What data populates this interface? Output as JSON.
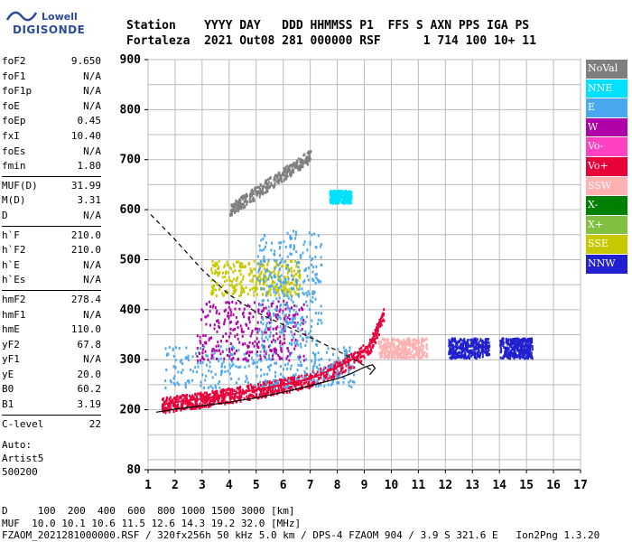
{
  "logo": {
    "line1": "Lowell",
    "line2": "DIGISONDE"
  },
  "header": {
    "line1": "Station    YYYY DAY   DDD HHMMSS P1  FFS S AXN PPS IGA PS",
    "line2": "Fortaleza  2021 Out08 281 000000 RSF      1 714 100 10+ 11"
  },
  "params": [
    [
      {
        "k": "foF2",
        "v": "9.650"
      },
      {
        "k": "foF1",
        "v": "N/A"
      },
      {
        "k": "foF1p",
        "v": "N/A"
      },
      {
        "k": "foE",
        "v": "N/A"
      },
      {
        "k": "foEp",
        "v": "0.45"
      },
      {
        "k": "fxI",
        "v": "10.40"
      },
      {
        "k": "foEs",
        "v": "N/A"
      },
      {
        "k": "fmin",
        "v": "1.80"
      }
    ],
    [
      {
        "k": "MUF(D)",
        "v": "31.99"
      },
      {
        "k": "M(D)",
        "v": "3.31"
      },
      {
        "k": "D",
        "v": "N/A"
      }
    ],
    [
      {
        "k": "h`F",
        "v": "210.0"
      },
      {
        "k": "h`F2",
        "v": "210.0"
      },
      {
        "k": "h`E",
        "v": "N/A"
      },
      {
        "k": "h`Es",
        "v": "N/A"
      }
    ],
    [
      {
        "k": "hmF2",
        "v": "278.4"
      },
      {
        "k": "hmF1",
        "v": "N/A"
      },
      {
        "k": "hmE",
        "v": "110.0"
      },
      {
        "k": "yF2",
        "v": "67.8"
      },
      {
        "k": "yF1",
        "v": "N/A"
      },
      {
        "k": "yE",
        "v": "20.0"
      },
      {
        "k": "B0",
        "v": "60.2"
      },
      {
        "k": "B1",
        "v": "3.19"
      }
    ],
    [
      {
        "k": "C-level",
        "v": "22"
      }
    ]
  ],
  "auto": {
    "line1": "Auto:",
    "line2": "Artist5",
    "line3": "500200"
  },
  "legend": [
    {
      "label": "NoVal",
      "color": "#7f7f7f",
      "text": "#ffffff"
    },
    {
      "label": "NNE",
      "color": "#00e0ff",
      "text": "#ffffff"
    },
    {
      "label": "E",
      "color": "#4aa8f0",
      "text": "#ffffff"
    },
    {
      "label": "W",
      "color": "#b000a8",
      "text": "#ffffff"
    },
    {
      "label": "Vo-",
      "color": "#ff40c0",
      "text": "#ffffff"
    },
    {
      "label": "Vo+",
      "color": "#e8003a",
      "text": "#ffffff"
    },
    {
      "label": "SSW",
      "color": "#ffb0b0",
      "text": "#ffffff"
    },
    {
      "label": "X-",
      "color": "#008000",
      "text": "#ffffff"
    },
    {
      "label": "X+",
      "color": "#80c040",
      "text": "#ffffff"
    },
    {
      "label": "SSE",
      "color": "#c8c800",
      "text": "#ffffff"
    },
    {
      "label": "NNW",
      "color": "#2020d0",
      "text": "#ffffff"
    }
  ],
  "footer": {
    "line1": "D     100  200  400  600  800 1000 1500 3000 [km]",
    "line2": "MUF  10.0 10.1 10.6 11.5 12.6 14.3 19.2 32.0 [MHz]",
    "line3": "FZAOM_2021281000000.RSF / 320fx256h 50 kHz 5.0 km / DPS-4 FZAOM 904 / 3.9 S 321.6 E   Ion2Png 1.3.20"
  },
  "chart_data": {
    "type": "scatter",
    "x_ticks": [
      "1",
      "2",
      "3",
      "4",
      "5",
      "6",
      "7",
      "8",
      "9",
      "10",
      "11",
      "12",
      "13",
      "14",
      "15",
      "16",
      "17"
    ],
    "y_ticks": [
      "80",
      "200",
      "300",
      "400",
      "500",
      "600",
      "700",
      "800",
      "900"
    ],
    "xlim": [
      1,
      17
    ],
    "ylim": [
      80,
      900
    ],
    "grid": true,
    "curves": {
      "solid_profile": [
        [
          1.3,
          195
        ],
        [
          2,
          201
        ],
        [
          3,
          208
        ],
        [
          4,
          215
        ],
        [
          5,
          224
        ],
        [
          6,
          235
        ],
        [
          7,
          248
        ],
        [
          8,
          262
        ],
        [
          8.5,
          272
        ],
        [
          9,
          285
        ],
        [
          9.3,
          290
        ],
        [
          9.4,
          283
        ],
        [
          9.2,
          270
        ]
      ],
      "dashed_profile": [
        [
          1.1,
          590
        ],
        [
          2,
          540
        ],
        [
          3,
          480
        ],
        [
          4,
          430
        ],
        [
          5,
          395
        ],
        [
          6,
          370
        ],
        [
          7,
          345
        ],
        [
          8,
          318
        ],
        [
          8.8,
          295
        ],
        [
          9.3,
          278
        ]
      ],
      "trace": [
        [
          1.5,
          210
        ],
        [
          2,
          215
        ],
        [
          3,
          222
        ],
        [
          4,
          230
        ],
        [
          5,
          240
        ],
        [
          6,
          250
        ],
        [
          7,
          262
        ],
        [
          8,
          285
        ],
        [
          8.7,
          305
        ],
        [
          9.2,
          330
        ],
        [
          9.5,
          365
        ],
        [
          9.7,
          395
        ]
      ]
    },
    "echo_regions": [
      {
        "color": "#e8003a",
        "x": [
          1.5,
          9.8
        ],
        "y": [
          205,
          260
        ],
        "pattern": "trace"
      },
      {
        "color": "#4aa8f0",
        "x": [
          1.6,
          8.6
        ],
        "y": [
          245,
          330
        ]
      },
      {
        "color": "#b000a8",
        "x": [
          2.7,
          6.8
        ],
        "y": [
          300,
          420
        ]
      },
      {
        "color": "#c8c800",
        "x": [
          3.3,
          6.6
        ],
        "y": [
          430,
          500
        ]
      },
      {
        "color": "#4aa8f0",
        "x": [
          5,
          7.4
        ],
        "y": [
          330,
          560
        ]
      },
      {
        "color": "#00e0ff",
        "x": [
          7.7,
          8.5
        ],
        "y": [
          615,
          640
        ]
      },
      {
        "color": "#ffb0b0",
        "x": [
          9.5,
          11.3
        ],
        "y": [
          305,
          345
        ]
      },
      {
        "color": "#2020d0",
        "x": [
          12.1,
          13.6
        ],
        "y": [
          305,
          345
        ]
      },
      {
        "color": "#2020d0",
        "x": [
          14,
          15.2
        ],
        "y": [
          305,
          345
        ]
      },
      {
        "color": "#7f7f7f",
        "x": [
          4,
          7
        ],
        "y": [
          600,
          710
        ],
        "pattern": "diagonal"
      }
    ]
  }
}
